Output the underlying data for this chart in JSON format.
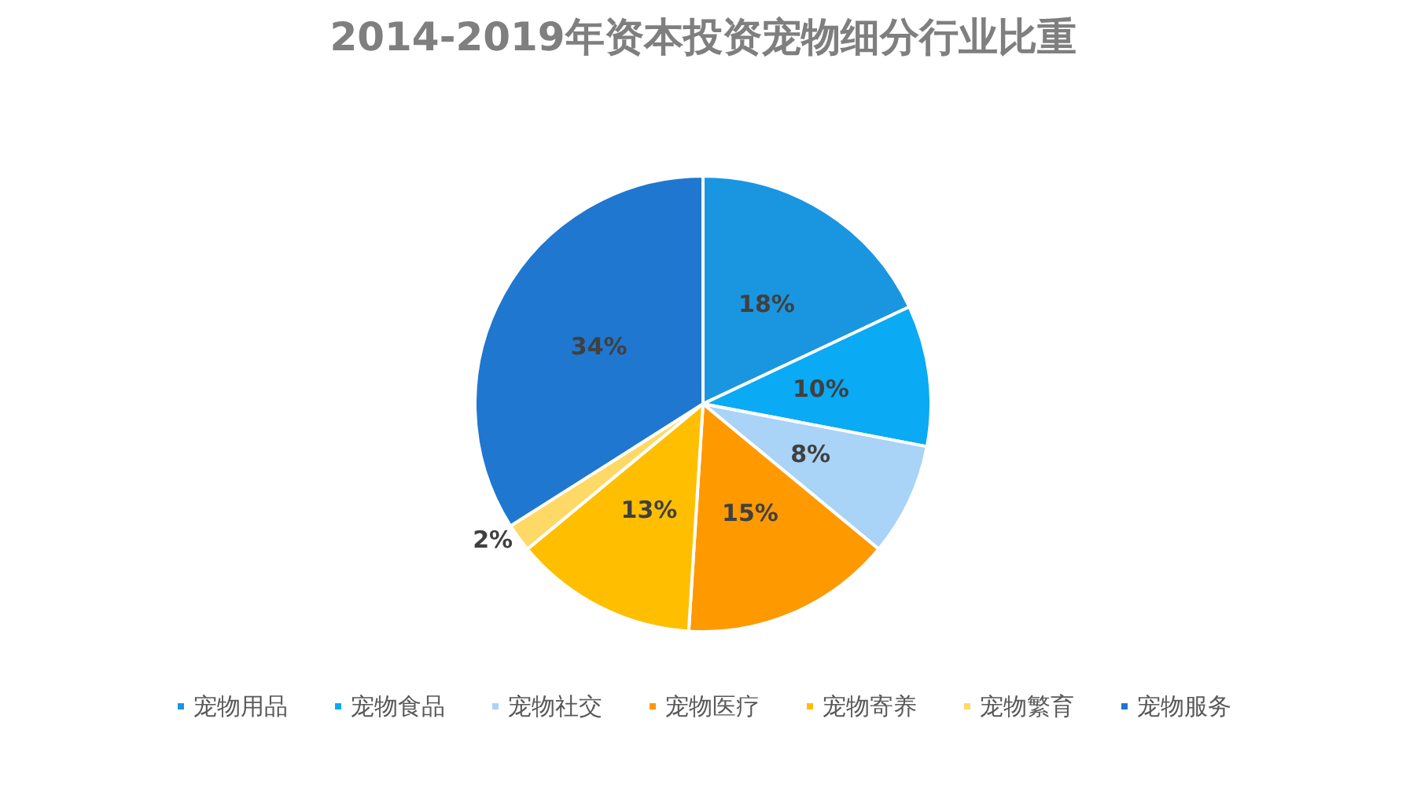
{
  "chart_data": {
    "type": "pie",
    "title": "2014-2019年资本投资宠物细分行业比重",
    "categories": [
      "宠物用品",
      "宠物食品",
      "宠物社交",
      "宠物医疗",
      "宠物寄养",
      "宠物繁育",
      "宠物服务"
    ],
    "values": [
      18,
      10,
      8,
      15,
      13,
      2,
      34
    ],
    "value_labels": [
      "18%",
      "10%",
      "8%",
      "15%",
      "13%",
      "2%",
      "34%"
    ],
    "colors": [
      "#1a96e0",
      "#0aaaf5",
      "#a9d3f7",
      "#ff9900",
      "#ffbf00",
      "#ffd966",
      "#1f77d0"
    ],
    "legend": "bottom"
  }
}
